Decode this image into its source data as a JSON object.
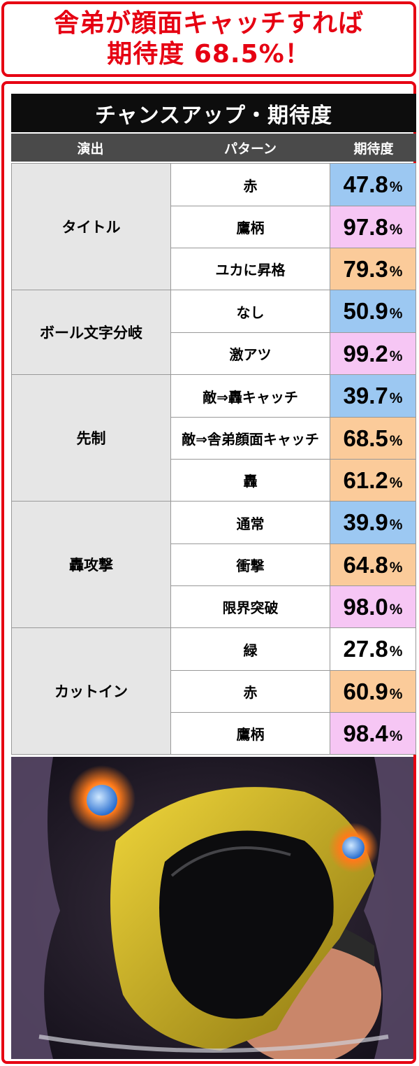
{
  "headline": {
    "line1": "舎弟が顔面キャッチすれば",
    "line2": "期待度 68.5%！"
  },
  "table": {
    "title": "チャンスアップ・期待度",
    "headers": {
      "effect": "演出",
      "pattern": "パターン",
      "rate": "期待度"
    },
    "percent_sign": "%",
    "colors": {
      "blue": "#9cc8f2",
      "pink": "#f6c6f4",
      "orange": "#fbcb9a",
      "white": "#ffffff"
    },
    "groups": [
      {
        "label": "タイトル",
        "rows": [
          {
            "pattern": "赤",
            "rate": "47.8",
            "color": "blue"
          },
          {
            "pattern": "鷹柄",
            "rate": "97.8",
            "color": "pink"
          },
          {
            "pattern": "ユカに昇格",
            "rate": "79.3",
            "color": "orange"
          }
        ]
      },
      {
        "label": "ボール文字分岐",
        "rows": [
          {
            "pattern": "なし",
            "rate": "50.9",
            "color": "blue"
          },
          {
            "pattern": "激アツ",
            "rate": "99.2",
            "color": "pink"
          }
        ]
      },
      {
        "label": "先制",
        "rows": [
          {
            "pattern": "敵⇒轟キャッチ",
            "rate": "39.7",
            "color": "blue"
          },
          {
            "pattern": "敵⇒舎弟顔面キャッチ",
            "rate": "68.5",
            "color": "orange"
          },
          {
            "pattern": "轟",
            "rate": "61.2",
            "color": "orange"
          }
        ]
      },
      {
        "label": "轟攻撃",
        "rows": [
          {
            "pattern": "通常",
            "rate": "39.9",
            "color": "blue"
          },
          {
            "pattern": "衝撃",
            "rate": "64.8",
            "color": "orange"
          },
          {
            "pattern": "限界突破",
            "rate": "98.0",
            "color": "pink"
          }
        ]
      },
      {
        "label": "カットイン",
        "rows": [
          {
            "pattern": "緑",
            "rate": "27.8",
            "color": "white"
          },
          {
            "pattern": "赤",
            "rate": "60.9",
            "color": "orange"
          },
          {
            "pattern": "鷹柄",
            "rate": "98.4",
            "color": "pink"
          }
        ]
      }
    ]
  },
  "screenshot": {
    "helmet_color": "#d9bd1e",
    "flame_color": "#ff7a1a",
    "ball_color": "#4aa3ff"
  }
}
